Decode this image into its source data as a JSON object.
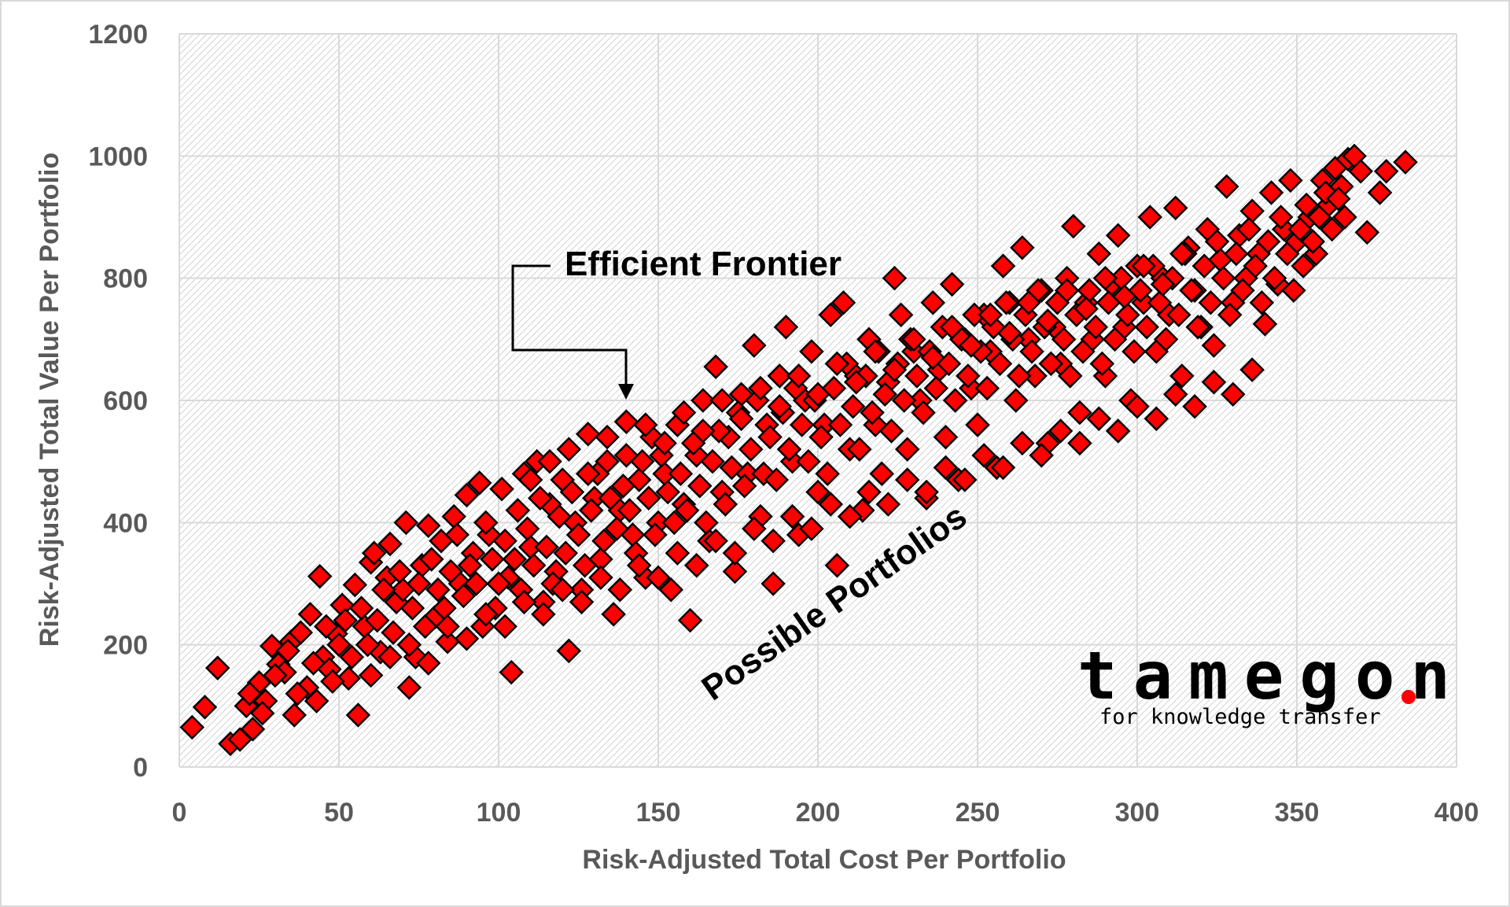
{
  "chart_data": {
    "type": "scatter",
    "xlabel": "Risk-Adjusted Total Cost Per Portfolio",
    "ylabel": "Risk-Adjusted Total Value Per Portfolio",
    "xlim": [
      0,
      400
    ],
    "ylim": [
      0,
      1200
    ],
    "x_ticks": [
      0,
      50,
      100,
      150,
      200,
      250,
      300,
      350,
      400
    ],
    "y_ticks": [
      0,
      200,
      400,
      600,
      800,
      1000,
      1200
    ],
    "grid": true,
    "marker": "diamond",
    "marker_color": "#ff0000",
    "marker_edge_color": "#000000",
    "background_pattern": "diagonal-hatch",
    "annotations": [
      {
        "text": "Efficient Frontier",
        "arrow_target": [
          140,
          600
        ]
      },
      {
        "text": "Possible Portfolios"
      }
    ],
    "x_ticks_labels": [
      "0",
      "50",
      "100",
      "150",
      "200",
      "250",
      "300",
      "350",
      "400"
    ],
    "y_ticks_labels": [
      "0",
      "200",
      "400",
      "600",
      "800",
      "1000",
      "1200"
    ],
    "points": [
      [
        4,
        65
      ],
      [
        8,
        98
      ],
      [
        12,
        162
      ],
      [
        16,
        38
      ],
      [
        19,
        45
      ],
      [
        21,
        100
      ],
      [
        23,
        62
      ],
      [
        25,
        138
      ],
      [
        27,
        108
      ],
      [
        29,
        198
      ],
      [
        31,
        168
      ],
      [
        33,
        155
      ],
      [
        35,
        205
      ],
      [
        36,
        85
      ],
      [
        38,
        220
      ],
      [
        40,
        130
      ],
      [
        41,
        250
      ],
      [
        43,
        108
      ],
      [
        44,
        312
      ],
      [
        45,
        180
      ],
      [
        47,
        160
      ],
      [
        49,
        218
      ],
      [
        51,
        265
      ],
      [
        53,
        145
      ],
      [
        55,
        298
      ],
      [
        56,
        85
      ],
      [
        58,
        230
      ],
      [
        60,
        335
      ],
      [
        61,
        350
      ],
      [
        63,
        188
      ],
      [
        65,
        310
      ],
      [
        66,
        365
      ],
      [
        68,
        270
      ],
      [
        70,
        290
      ],
      [
        71,
        400
      ],
      [
        72,
        130
      ],
      [
        74,
        180
      ],
      [
        76,
        330
      ],
      [
        78,
        395
      ],
      [
        80,
        245
      ],
      [
        82,
        370
      ],
      [
        84,
        205
      ],
      [
        86,
        410
      ],
      [
        88,
        300
      ],
      [
        90,
        445
      ],
      [
        92,
        350
      ],
      [
        94,
        465
      ],
      [
        95,
        230
      ],
      [
        97,
        380
      ],
      [
        99,
        260
      ],
      [
        101,
        455
      ],
      [
        103,
        310
      ],
      [
        104,
        155
      ],
      [
        106,
        420
      ],
      [
        108,
        480
      ],
      [
        110,
        360
      ],
      [
        112,
        500
      ],
      [
        114,
        270
      ],
      [
        116,
        430
      ],
      [
        118,
        320
      ],
      [
        120,
        470
      ],
      [
        122,
        190
      ],
      [
        124,
        400
      ],
      [
        126,
        290
      ],
      [
        128,
        545
      ],
      [
        130,
        440
      ],
      [
        132,
        340
      ],
      [
        134,
        500
      ],
      [
        136,
        250
      ],
      [
        138,
        420
      ],
      [
        140,
        565
      ],
      [
        142,
        380
      ],
      [
        144,
        470
      ],
      [
        146,
        310
      ],
      [
        148,
        540
      ],
      [
        150,
        400
      ],
      [
        152,
        480
      ],
      [
        154,
        290
      ],
      [
        156,
        560
      ],
      [
        158,
        430
      ],
      [
        160,
        240
      ],
      [
        162,
        510
      ],
      [
        164,
        600
      ],
      [
        166,
        370
      ],
      [
        168,
        655
      ],
      [
        170,
        450
      ],
      [
        172,
        540
      ],
      [
        174,
        320
      ],
      [
        176,
        610
      ],
      [
        178,
        480
      ],
      [
        180,
        690
      ],
      [
        182,
        410
      ],
      [
        184,
        560
      ],
      [
        186,
        300
      ],
      [
        188,
        640
      ],
      [
        190,
        720
      ],
      [
        192,
        500
      ],
      [
        194,
        380
      ],
      [
        196,
        600
      ],
      [
        198,
        680
      ],
      [
        200,
        450
      ],
      [
        202,
        560
      ],
      [
        204,
        740
      ],
      [
        206,
        330
      ],
      [
        208,
        760
      ],
      [
        210,
        520
      ],
      [
        212,
        640
      ],
      [
        214,
        420
      ],
      [
        216,
        700
      ],
      [
        218,
        560
      ],
      [
        220,
        480
      ],
      [
        222,
        630
      ],
      [
        224,
        800
      ],
      [
        226,
        740
      ],
      [
        228,
        520
      ],
      [
        230,
        680
      ],
      [
        232,
        600
      ],
      [
        234,
        440
      ],
      [
        236,
        760
      ],
      [
        238,
        650
      ],
      [
        240,
        540
      ],
      [
        242,
        790
      ],
      [
        244,
        470
      ],
      [
        246,
        700
      ],
      [
        248,
        620
      ],
      [
        250,
        560
      ],
      [
        252,
        740
      ],
      [
        254,
        680
      ],
      [
        256,
        490
      ],
      [
        258,
        820
      ],
      [
        260,
        760
      ],
      [
        262,
        600
      ],
      [
        264,
        850
      ],
      [
        266,
        700
      ],
      [
        268,
        640
      ],
      [
        270,
        780
      ],
      [
        272,
        530
      ],
      [
        274,
        720
      ],
      [
        276,
        660
      ],
      [
        278,
        800
      ],
      [
        280,
        885
      ],
      [
        282,
        580
      ],
      [
        284,
        760
      ],
      [
        286,
        700
      ],
      [
        288,
        840
      ],
      [
        290,
        640
      ],
      [
        292,
        790
      ],
      [
        294,
        870
      ],
      [
        296,
        720
      ],
      [
        298,
        600
      ],
      [
        300,
        820
      ],
      [
        302,
        760
      ],
      [
        304,
        900
      ],
      [
        306,
        680
      ],
      [
        308,
        800
      ],
      [
        310,
        740
      ],
      [
        312,
        915
      ],
      [
        314,
        640
      ],
      [
        316,
        850
      ],
      [
        318,
        780
      ],
      [
        320,
        720
      ],
      [
        322,
        880
      ],
      [
        324,
        690
      ],
      [
        326,
        830
      ],
      [
        328,
        950
      ],
      [
        330,
        760
      ],
      [
        332,
        870
      ],
      [
        334,
        800
      ],
      [
        336,
        910
      ],
      [
        338,
        840
      ],
      [
        340,
        725
      ],
      [
        342,
        940
      ],
      [
        344,
        790
      ],
      [
        346,
        880
      ],
      [
        348,
        960
      ],
      [
        350,
        860
      ],
      [
        352,
        820
      ],
      [
        354,
        900
      ],
      [
        356,
        840
      ],
      [
        358,
        960
      ],
      [
        360,
        920
      ],
      [
        362,
        980
      ],
      [
        364,
        950
      ],
      [
        366,
        995
      ],
      [
        368,
        1000
      ],
      [
        370,
        975
      ],
      [
        372,
        875
      ],
      [
        376,
        940
      ],
      [
        378,
        975
      ],
      [
        384,
        990
      ],
      [
        22,
        120
      ],
      [
        26,
        88
      ],
      [
        30,
        150
      ],
      [
        34,
        190
      ],
      [
        37,
        120
      ],
      [
        42,
        170
      ],
      [
        46,
        230
      ],
      [
        48,
        140
      ],
      [
        50,
        200
      ],
      [
        52,
        240
      ],
      [
        54,
        180
      ],
      [
        57,
        260
      ],
      [
        59,
        200
      ],
      [
        62,
        240
      ],
      [
        64,
        290
      ],
      [
        67,
        220
      ],
      [
        69,
        320
      ],
      [
        73,
        260
      ],
      [
        75,
        300
      ],
      [
        77,
        230
      ],
      [
        79,
        340
      ],
      [
        81,
        290
      ],
      [
        83,
        260
      ],
      [
        85,
        320
      ],
      [
        87,
        380
      ],
      [
        89,
        280
      ],
      [
        91,
        330
      ],
      [
        93,
        300
      ],
      [
        96,
        400
      ],
      [
        98,
        340
      ],
      [
        100,
        300
      ],
      [
        102,
        370
      ],
      [
        105,
        340
      ],
      [
        107,
        290
      ],
      [
        109,
        390
      ],
      [
        111,
        330
      ],
      [
        113,
        440
      ],
      [
        115,
        360
      ],
      [
        117,
        300
      ],
      [
        119,
        410
      ],
      [
        121,
        350
      ],
      [
        123,
        450
      ],
      [
        125,
        380
      ],
      [
        127,
        330
      ],
      [
        129,
        420
      ],
      [
        131,
        480
      ],
      [
        133,
        370
      ],
      [
        135,
        440
      ],
      [
        137,
        390
      ],
      [
        139,
        460
      ],
      [
        141,
        420
      ],
      [
        143,
        350
      ],
      [
        145,
        500
      ],
      [
        147,
        440
      ],
      [
        149,
        380
      ],
      [
        151,
        510
      ],
      [
        153,
        450
      ],
      [
        155,
        400
      ],
      [
        157,
        480
      ],
      [
        159,
        420
      ],
      [
        161,
        530
      ],
      [
        163,
        460
      ],
      [
        165,
        400
      ],
      [
        167,
        500
      ],
      [
        169,
        550
      ],
      [
        171,
        430
      ],
      [
        173,
        490
      ],
      [
        175,
        580
      ],
      [
        177,
        460
      ],
      [
        179,
        520
      ],
      [
        181,
        600
      ],
      [
        183,
        480
      ],
      [
        185,
        540
      ],
      [
        187,
        470
      ],
      [
        189,
        580
      ],
      [
        191,
        520
      ],
      [
        193,
        620
      ],
      [
        195,
        560
      ],
      [
        197,
        500
      ],
      [
        199,
        600
      ],
      [
        201,
        540
      ],
      [
        203,
        480
      ],
      [
        205,
        620
      ],
      [
        207,
        560
      ],
      [
        209,
        660
      ],
      [
        211,
        590
      ],
      [
        213,
        520
      ],
      [
        215,
        640
      ],
      [
        217,
        580
      ],
      [
        219,
        680
      ],
      [
        221,
        610
      ],
      [
        223,
        550
      ],
      [
        225,
        660
      ],
      [
        227,
        600
      ],
      [
        229,
        700
      ],
      [
        231,
        640
      ],
      [
        233,
        580
      ],
      [
        235,
        680
      ],
      [
        237,
        620
      ],
      [
        239,
        720
      ],
      [
        241,
        660
      ],
      [
        243,
        600
      ],
      [
        245,
        700
      ],
      [
        247,
        640
      ],
      [
        249,
        740
      ],
      [
        251,
        680
      ],
      [
        253,
        620
      ],
      [
        255,
        720
      ],
      [
        257,
        660
      ],
      [
        259,
        760
      ],
      [
        261,
        700
      ],
      [
        263,
        640
      ],
      [
        265,
        740
      ],
      [
        267,
        680
      ],
      [
        269,
        780
      ],
      [
        271,
        720
      ],
      [
        273,
        660
      ],
      [
        275,
        760
      ],
      [
        277,
        700
      ],
      [
        279,
        640
      ],
      [
        281,
        740
      ],
      [
        283,
        680
      ],
      [
        285,
        780
      ],
      [
        287,
        720
      ],
      [
        289,
        660
      ],
      [
        291,
        760
      ],
      [
        293,
        700
      ],
      [
        295,
        800
      ],
      [
        297,
        740
      ],
      [
        299,
        680
      ],
      [
        301,
        780
      ],
      [
        303,
        720
      ],
      [
        305,
        820
      ],
      [
        307,
        760
      ],
      [
        309,
        700
      ],
      [
        311,
        800
      ],
      [
        313,
        740
      ],
      [
        315,
        840
      ],
      [
        317,
        780
      ],
      [
        319,
        720
      ],
      [
        321,
        820
      ],
      [
        323,
        760
      ],
      [
        325,
        860
      ],
      [
        327,
        800
      ],
      [
        329,
        740
      ],
      [
        331,
        840
      ],
      [
        333,
        780
      ],
      [
        335,
        880
      ],
      [
        337,
        820
      ],
      [
        339,
        760
      ],
      [
        341,
        860
      ],
      [
        343,
        800
      ],
      [
        345,
        900
      ],
      [
        347,
        840
      ],
      [
        349,
        780
      ],
      [
        351,
        880
      ],
      [
        353,
        920
      ],
      [
        355,
        860
      ],
      [
        357,
        900
      ],
      [
        359,
        940
      ],
      [
        361,
        880
      ],
      [
        363,
        930
      ],
      [
        365,
        900
      ],
      [
        60,
        150
      ],
      [
        66,
        180
      ],
      [
        72,
        200
      ],
      [
        78,
        170
      ],
      [
        84,
        230
      ],
      [
        90,
        210
      ],
      [
        96,
        250
      ],
      [
        102,
        230
      ],
      [
        108,
        270
      ],
      [
        114,
        250
      ],
      [
        120,
        290
      ],
      [
        126,
        270
      ],
      [
        132,
        310
      ],
      [
        138,
        290
      ],
      [
        144,
        330
      ],
      [
        150,
        310
      ],
      [
        156,
        350
      ],
      [
        162,
        330
      ],
      [
        168,
        370
      ],
      [
        174,
        350
      ],
      [
        180,
        390
      ],
      [
        186,
        370
      ],
      [
        192,
        410
      ],
      [
        198,
        390
      ],
      [
        204,
        430
      ],
      [
        210,
        410
      ],
      [
        216,
        450
      ],
      [
        222,
        430
      ],
      [
        228,
        470
      ],
      [
        234,
        450
      ],
      [
        240,
        490
      ],
      [
        246,
        470
      ],
      [
        252,
        510
      ],
      [
        258,
        490
      ],
      [
        264,
        530
      ],
      [
        270,
        510
      ],
      [
        276,
        550
      ],
      [
        282,
        530
      ],
      [
        288,
        570
      ],
      [
        294,
        550
      ],
      [
        300,
        590
      ],
      [
        306,
        570
      ],
      [
        312,
        610
      ],
      [
        318,
        590
      ],
      [
        324,
        630
      ],
      [
        330,
        610
      ],
      [
        336,
        650
      ],
      [
        110,
        470
      ],
      [
        116,
        500
      ],
      [
        122,
        520
      ],
      [
        128,
        480
      ],
      [
        134,
        540
      ],
      [
        140,
        510
      ],
      [
        146,
        560
      ],
      [
        152,
        530
      ],
      [
        158,
        580
      ],
      [
        164,
        550
      ],
      [
        170,
        600
      ],
      [
        176,
        570
      ],
      [
        182,
        620
      ],
      [
        188,
        590
      ],
      [
        194,
        640
      ],
      [
        200,
        610
      ],
      [
        206,
        660
      ],
      [
        212,
        630
      ],
      [
        218,
        680
      ],
      [
        224,
        650
      ],
      [
        230,
        700
      ],
      [
        236,
        670
      ],
      [
        242,
        720
      ],
      [
        248,
        690
      ],
      [
        254,
        740
      ],
      [
        260,
        710
      ],
      [
        266,
        760
      ],
      [
        272,
        730
      ],
      [
        278,
        780
      ],
      [
        284,
        750
      ],
      [
        290,
        800
      ],
      [
        296,
        770
      ],
      [
        302,
        820
      ],
      [
        308,
        790
      ],
      [
        314,
        840
      ]
    ]
  }
}
